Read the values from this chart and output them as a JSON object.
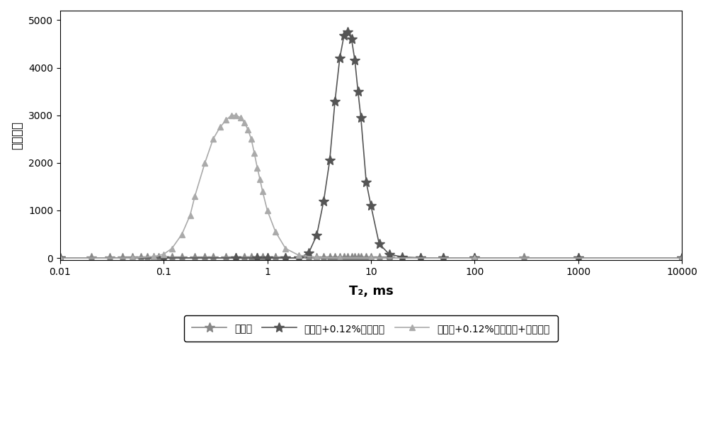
{
  "title": "",
  "xlabel": "T₂, ms",
  "ylabel": "信号幅度",
  "xlim": [
    0.01,
    10000
  ],
  "ylim": [
    -50,
    5200
  ],
  "yticks": [
    0,
    1000,
    2000,
    3000,
    4000,
    5000
  ],
  "background_color": "#ffffff",
  "series": [
    {
      "name": "钒井液",
      "color": "#888888",
      "linewidth": 1.2,
      "marker": "*",
      "markersize": 10,
      "x": [
        0.01,
        0.02,
        0.03,
        0.04,
        0.05,
        0.06,
        0.07,
        0.08,
        0.09,
        0.1,
        0.12,
        0.15,
        0.2,
        0.25,
        0.3,
        0.4,
        0.5,
        0.6,
        0.7,
        0.8,
        0.9,
        1.0,
        1.2,
        1.5,
        2.0,
        2.5,
        3.0,
        3.5,
        4.0,
        4.5,
        5.0,
        5.5,
        6.0,
        6.5,
        7.0,
        7.5,
        8.0,
        9.0,
        10.0,
        12.0,
        15.0,
        20.0,
        30.0,
        50.0,
        100.0,
        300.0,
        1000.0,
        10000.0
      ],
      "y": [
        0,
        0,
        0,
        0,
        0,
        0,
        0,
        0,
        0,
        0,
        0,
        0,
        0,
        0,
        0,
        0,
        0,
        0,
        0,
        0,
        0,
        0,
        0,
        0,
        0,
        0,
        0,
        0,
        0,
        0,
        0,
        0,
        0,
        0,
        0,
        0,
        0,
        0,
        0,
        0,
        0,
        0,
        0,
        0,
        0,
        0,
        0,
        0
      ]
    },
    {
      "name": "钒井液+0.12%磺化褐煎",
      "color": "#555555",
      "linewidth": 1.2,
      "marker": "*",
      "markersize": 10,
      "x": [
        0.01,
        0.1,
        0.5,
        0.8,
        1.0,
        1.5,
        2.0,
        2.5,
        3.0,
        3.5,
        4.0,
        4.5,
        5.0,
        5.5,
        6.0,
        6.5,
        7.0,
        7.5,
        8.0,
        9.0,
        10.0,
        12.0,
        15.0,
        20.0,
        30.0,
        50.0,
        100.0,
        1000.0,
        10000.0
      ],
      "y": [
        0,
        0,
        0,
        0,
        0,
        0,
        0,
        100,
        480,
        1200,
        2050,
        3300,
        4200,
        4680,
        4750,
        4600,
        4150,
        3500,
        2950,
        1600,
        1100,
        300,
        80,
        20,
        5,
        0,
        0,
        0,
        0
      ]
    },
    {
      "name": "钒井液+0.12%磺化褐煎+弛象试剂",
      "color": "#aaaaaa",
      "linewidth": 1.2,
      "marker": "^",
      "markersize": 6,
      "x": [
        0.01,
        0.05,
        0.08,
        0.1,
        0.12,
        0.15,
        0.18,
        0.2,
        0.25,
        0.3,
        0.35,
        0.4,
        0.45,
        0.5,
        0.55,
        0.6,
        0.65,
        0.7,
        0.75,
        0.8,
        0.85,
        0.9,
        1.0,
        1.2,
        1.5,
        2.0,
        3.0,
        5.0,
        10.0,
        100.0,
        10000.0
      ],
      "y": [
        0,
        0,
        30,
        80,
        200,
        500,
        900,
        1300,
        2000,
        2500,
        2750,
        2900,
        3000,
        3000,
        2950,
        2850,
        2700,
        2500,
        2200,
        1900,
        1650,
        1400,
        1000,
        550,
        200,
        60,
        10,
        2,
        0,
        0,
        0
      ]
    }
  ]
}
